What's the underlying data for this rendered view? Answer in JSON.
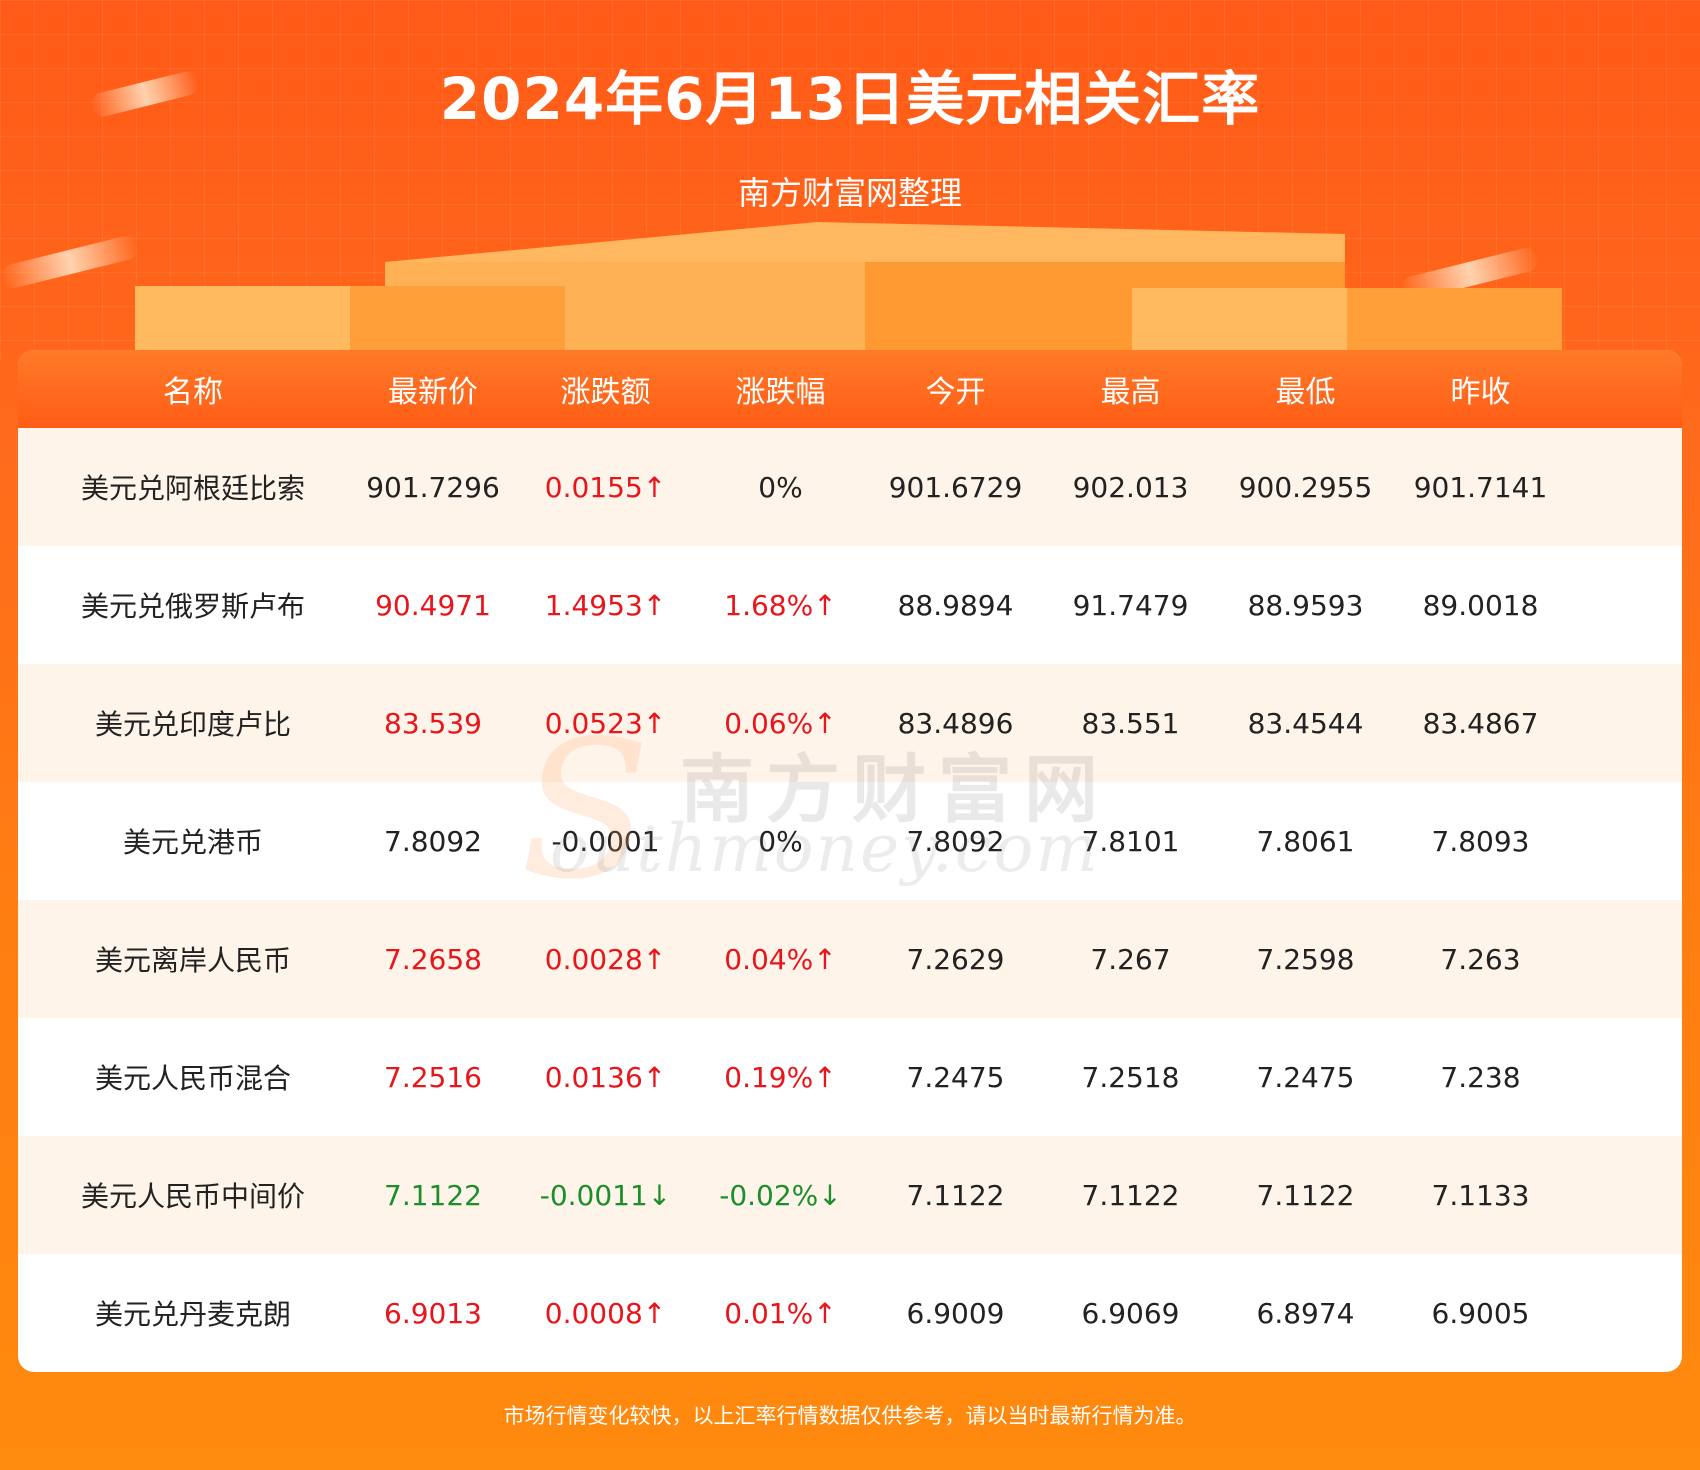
{
  "header": {
    "title": "2024年6月13日美元相关汇率",
    "subtitle": "南方财富网整理"
  },
  "table": {
    "columns": [
      "名称",
      "最新价",
      "涨跌额",
      "涨跌幅",
      "今开",
      "最高",
      "最低",
      "昨收"
    ],
    "rows": [
      {
        "name": "美元兑阿根廷比索",
        "latest": "901.7296",
        "change": "0.0155↑",
        "pct": "0%",
        "open": "901.6729",
        "high": "902.013",
        "low": "900.2955",
        "prev": "901.7141"
      },
      {
        "name": "美元兑俄罗斯卢布",
        "latest": "90.4971",
        "change": "1.4953↑",
        "pct": "1.68%↑",
        "open": "88.9894",
        "high": "91.7479",
        "low": "88.9593",
        "prev": "89.0018"
      },
      {
        "name": "美元兑印度卢比",
        "latest": "83.539",
        "change": "0.0523↑",
        "pct": "0.06%↑",
        "open": "83.4896",
        "high": "83.551",
        "low": "83.4544",
        "prev": "83.4867"
      },
      {
        "name": "美元兑港币",
        "latest": "7.8092",
        "change": "-0.0001",
        "pct": "0%",
        "open": "7.8092",
        "high": "7.8101",
        "low": "7.8061",
        "prev": "7.8093"
      },
      {
        "name": "美元离岸人民币",
        "latest": "7.2658",
        "change": "0.0028↑",
        "pct": "0.04%↑",
        "open": "7.2629",
        "high": "7.267",
        "low": "7.2598",
        "prev": "7.263"
      },
      {
        "name": "美元人民币混合",
        "latest": "7.2516",
        "change": "0.0136↑",
        "pct": "0.19%↑",
        "open": "7.2475",
        "high": "7.2518",
        "low": "7.2475",
        "prev": "7.238"
      },
      {
        "name": "美元人民币中间价",
        "latest": "7.1122",
        "change": "-0.0011↓",
        "pct": "-0.02%↓",
        "open": "7.1122",
        "high": "7.1122",
        "low": "7.1122",
        "prev": "7.1133"
      },
      {
        "name": "美元兑丹麦克朗",
        "latest": "6.9013",
        "change": "0.0008↑",
        "pct": "0.01%↑",
        "open": "6.9009",
        "high": "6.9069",
        "low": "6.8974",
        "prev": "6.9005"
      }
    ]
  },
  "watermark": {
    "cn": "南方财富网",
    "en": "outhmoney.com",
    "s": "S"
  },
  "footer": {
    "note": "市场行情变化较快，以上汇率行情数据仅供参考，请以当时最新行情为准。"
  },
  "colors": {
    "up": "#e8151b",
    "down": "#1a8f2a",
    "neutral": "#222222",
    "header_bg": "#ff6a1c"
  }
}
